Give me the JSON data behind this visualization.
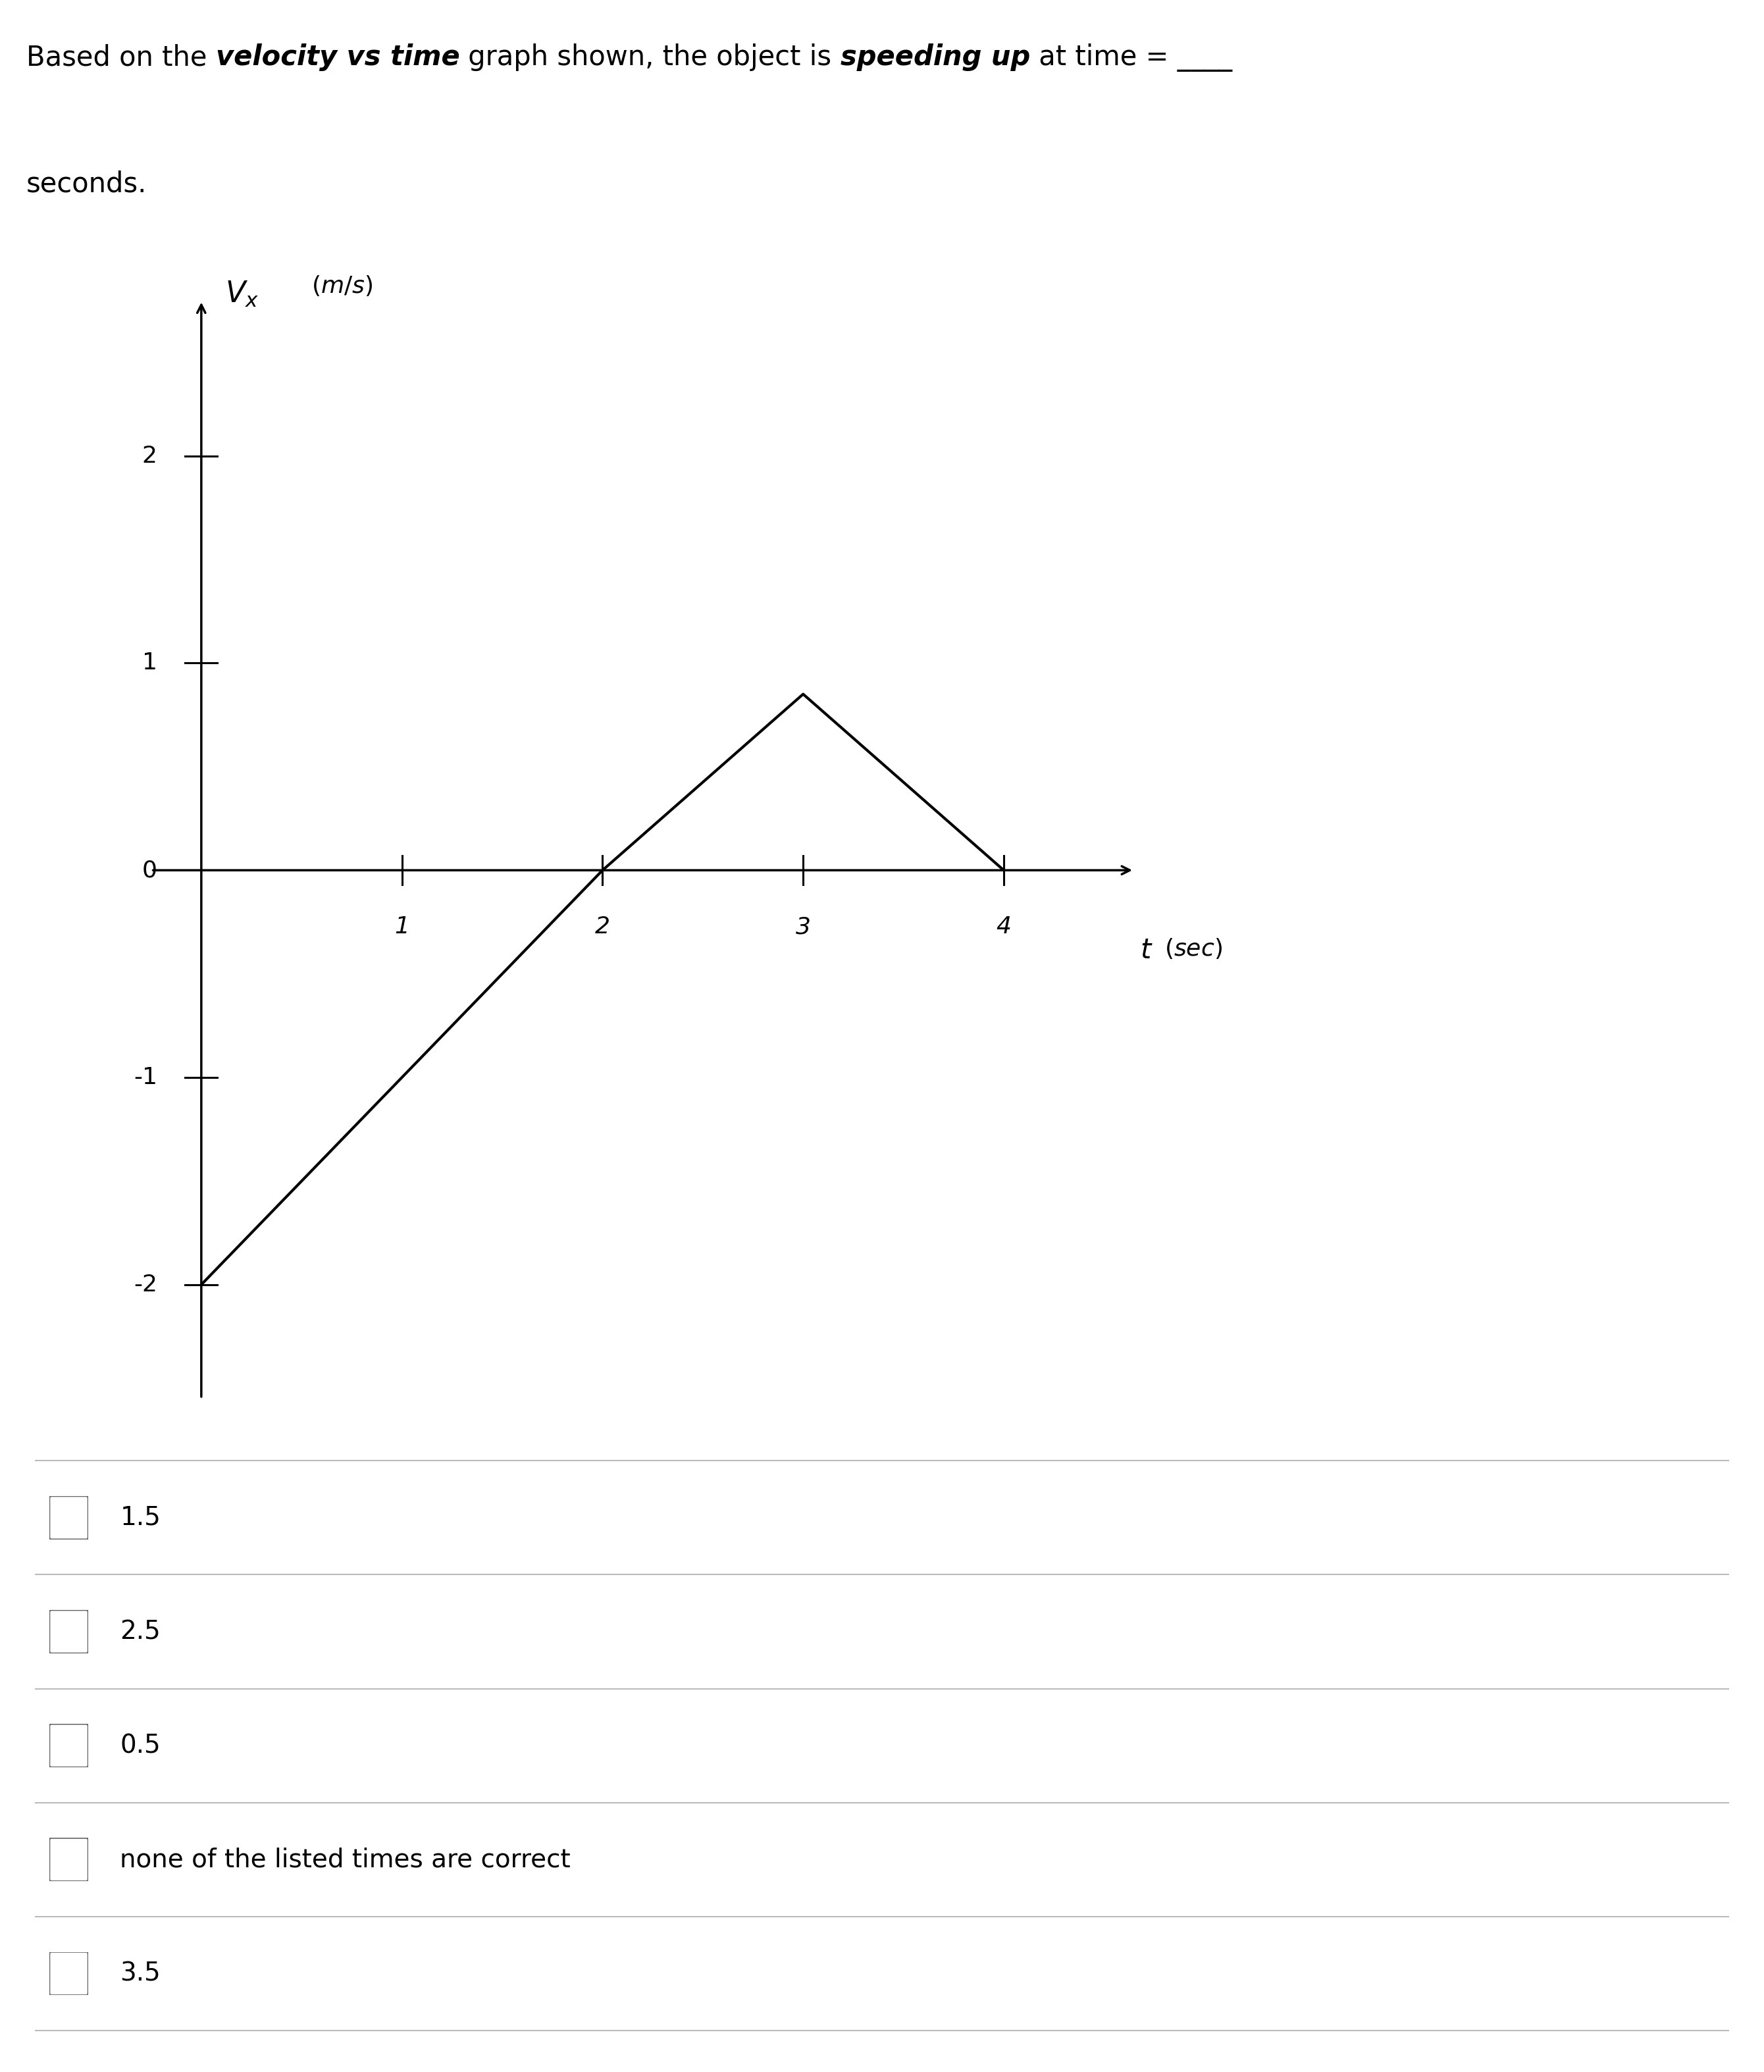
{
  "graph_points_x": [
    0,
    2,
    3,
    4
  ],
  "graph_points_y": [
    -2,
    0,
    0.85,
    0
  ],
  "xticks": [
    1,
    2,
    3,
    4
  ],
  "yticks": [
    -2,
    -1,
    0,
    1,
    2
  ],
  "xlim": [
    -0.3,
    4.8
  ],
  "ylim": [
    -2.6,
    2.9
  ],
  "line_color": "#000000",
  "line_width": 3.0,
  "bg_color": "#ffffff",
  "choices": [
    "1.5",
    "2.5",
    "0.5",
    "none of the listed times are correct",
    "3.5"
  ],
  "choice_fontsize": 28,
  "question_fontsize": 30,
  "tick_label_fontsize": 26
}
